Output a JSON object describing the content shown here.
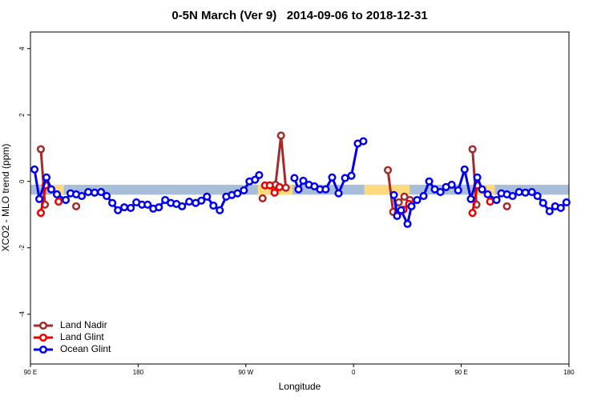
{
  "chart_data": {
    "type": "line",
    "title": "0-5N March (Ver 9)   2014-09-06 to 2018-12-31",
    "x_label": "Longitude",
    "y_label": "XCO2 - MLO trend (ppm)",
    "xlim": [
      90,
      540
    ],
    "xticks": [
      {
        "value": 90,
        "label": "90 E"
      },
      {
        "value": 180,
        "label": "180"
      },
      {
        "value": 270,
        "label": "90 W"
      },
      {
        "value": 360,
        "label": "0"
      },
      {
        "value": 450,
        "label": "90 E"
      },
      {
        "value": 540,
        "label": "180"
      }
    ],
    "ylim": [
      -5.5,
      4.5
    ],
    "yticks": [
      -4,
      -2,
      0,
      2,
      4
    ],
    "legend": "bottom-left",
    "band": {
      "y": [
        -0.4,
        -0.1
      ],
      "color": "#a8bdd8",
      "land_color": "#ffd97f",
      "land_x": [
        [
          108,
          118
        ],
        [
          280,
          309
        ],
        [
          369,
          407
        ],
        [
          460,
          478
        ]
      ]
    },
    "series": [
      {
        "name": "Land Nadir",
        "color": "#a52a2a",
        "x": [
          98.7,
          102.1,
          null,
          128.2,
          null,
          284,
          null,
          294.8,
          299.4,
          303.4,
          null,
          388.7,
          393.1,
          397.8,
          402.5,
          407.1,
          null,
          459.4,
          462.7,
          null,
          488.2
        ],
        "values": [
          0.97,
          -0.7,
          null,
          -0.75,
          null,
          -0.51,
          null,
          -0.1,
          1.38,
          -0.19,
          null,
          0.34,
          -0.92,
          -0.63,
          -0.46,
          -0.56,
          null,
          0.97,
          -0.7,
          null,
          -0.75
        ]
      },
      {
        "name": "Land Glint",
        "color": "#ee0000",
        "x": [
          98.7,
          102.7,
          null,
          113.5,
          null,
          286,
          290,
          294,
          298.1,
          null,
          397.1,
          401.8,
          406.4,
          null,
          459.4,
          463.4,
          null,
          474.1
        ],
        "values": [
          -0.95,
          -0.12,
          null,
          -0.61,
          null,
          -0.12,
          -0.12,
          -0.34,
          -0.17,
          null,
          -0.95,
          -0.85,
          -0.68,
          null,
          -0.95,
          -0.12,
          null,
          -0.61
        ]
      },
      {
        "name": "Ocean Glint",
        "color": "#0000ee",
        "x": [
          93.4,
          97.4,
          103.4,
          107.4,
          112.1,
          119.5,
          123.5,
          128.2,
          132.9,
          138.3,
          143.6,
          149,
          153.7,
          158.4,
          163.1,
          168.4,
          173.8,
          178.5,
          183.2,
          187.9,
          192.6,
          197.3,
          202.6,
          207.3,
          212,
          216.7,
          222.7,
          228.1,
          232.8,
          237.5,
          242.9,
          248.2,
          253.6,
          258.3,
          263,
          268.3,
          273,
          277.7,
          281.1,
          null,
          310.6,
          314,
          318,
          322.7,
          327.3,
          332,
          336.7,
          342.1,
          347.5,
          352.9,
          358.2,
          363.5,
          368.2,
          null,
          393.7,
          396.4,
          399.7,
          405.1,
          408.4,
          413.1,
          418.5,
          423.2,
          427.9,
          432.6,
          437.3,
          442,
          447.4,
          452.8,
          458,
          463.4,
          467.4,
          472.1,
          479.5,
          483.5,
          488.2,
          492.9,
          498.3,
          503.6,
          509,
          513.7,
          518.4,
          523.8,
          528.5,
          533.2,
          537.9
        ],
        "values": [
          0.36,
          -0.53,
          0.12,
          -0.24,
          -0.39,
          -0.56,
          -0.36,
          -0.39,
          -0.44,
          -0.32,
          -0.34,
          -0.32,
          -0.44,
          -0.65,
          -0.87,
          -0.78,
          -0.8,
          -0.63,
          -0.7,
          -0.7,
          -0.82,
          -0.78,
          -0.56,
          -0.65,
          -0.68,
          -0.75,
          -0.61,
          -0.65,
          -0.58,
          -0.46,
          -0.73,
          -0.87,
          -0.46,
          -0.41,
          -0.36,
          -0.27,
          0,
          0.05,
          0.19,
          null,
          0.1,
          -0.24,
          0.02,
          -0.1,
          -0.15,
          -0.24,
          -0.24,
          0.12,
          -0.36,
          0.1,
          0.17,
          1.14,
          1.21,
          null,
          -0.41,
          -1.04,
          -0.87,
          -1.28,
          -0.75,
          -0.56,
          -0.44,
          0,
          -0.24,
          -0.32,
          -0.17,
          -0.1,
          -0.27,
          0.36,
          -0.53,
          0.12,
          -0.24,
          -0.39,
          -0.56,
          -0.36,
          -0.39,
          -0.44,
          -0.32,
          -0.34,
          -0.32,
          -0.44,
          -0.65,
          -0.9,
          -0.75,
          -0.8,
          -0.63
        ]
      }
    ]
  }
}
